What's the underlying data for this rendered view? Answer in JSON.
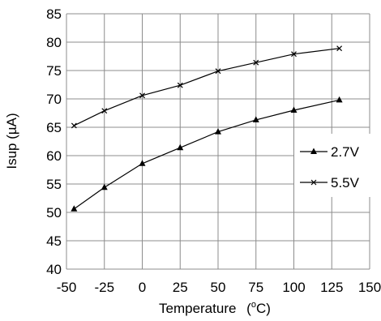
{
  "chart_data": {
    "type": "line",
    "xlabel": "Temperature",
    "xlabel_unit_prefix": "(",
    "xlabel_unit_sup": "o",
    "xlabel_unit_suffix": "C)",
    "ylabel": "Isup (µA)",
    "xlim": [
      -50,
      150
    ],
    "ylim": [
      40,
      85
    ],
    "x_ticks": [
      "-50",
      "-25",
      "0",
      "25",
      "50",
      "75",
      "100",
      "125",
      "150"
    ],
    "y_ticks": [
      "85",
      "80",
      "75",
      "70",
      "65",
      "60",
      "55",
      "50",
      "45",
      "40"
    ],
    "grid": true,
    "legend_position": "right",
    "x": [
      -45,
      -25,
      0,
      25,
      50,
      75,
      100,
      130
    ],
    "series": [
      {
        "name": "2.7V",
        "marker": "triangle",
        "values": [
          50.6,
          54.4,
          58.6,
          61.4,
          64.2,
          66.3,
          68.0,
          69.8
        ]
      },
      {
        "name": "5.5V",
        "marker": "x",
        "values": [
          65.3,
          67.9,
          70.6,
          72.4,
          74.9,
          76.4,
          77.9,
          78.9
        ]
      }
    ]
  }
}
